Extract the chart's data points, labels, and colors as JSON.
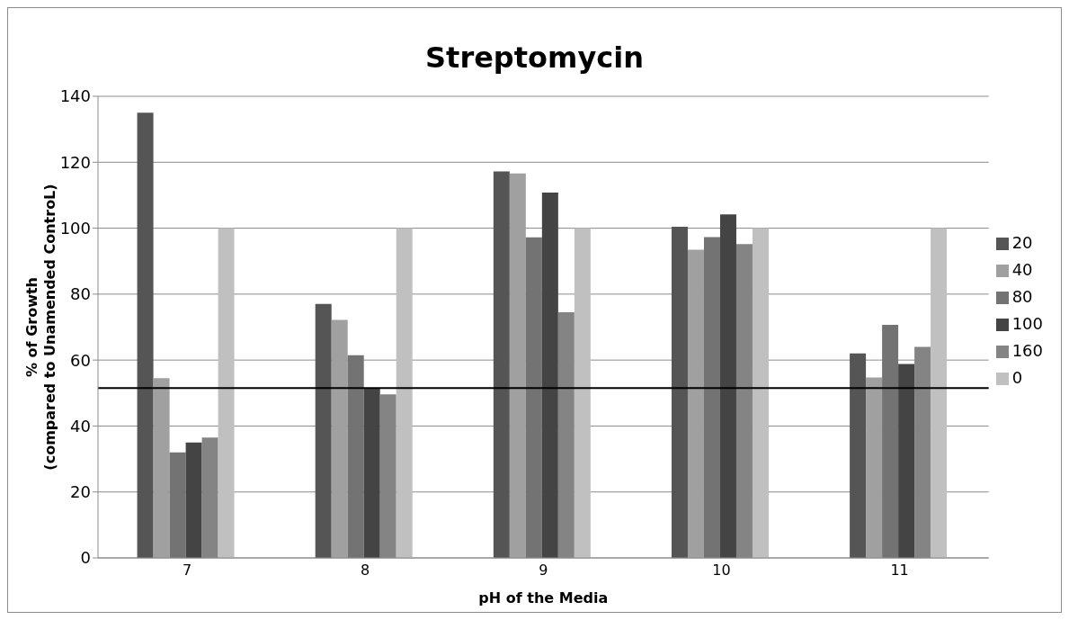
{
  "chart_data": {
    "type": "bar",
    "title": "Streptomycin",
    "xlabel": "pH of the Media",
    "ylabel": "% of Growth\n(compared to Unamended ControL)",
    "categories": [
      "7",
      "8",
      "9",
      "10",
      "11"
    ],
    "series": [
      {
        "name": "20",
        "color": "#555555",
        "values": [
          135,
          77,
          117.2,
          100.4,
          62
        ]
      },
      {
        "name": "40",
        "color": "#a0a0a0",
        "values": [
          54.5,
          72.2,
          116.6,
          93.5,
          54.7
        ]
      },
      {
        "name": "80",
        "color": "#737373",
        "values": [
          32,
          61.5,
          97.2,
          97.3,
          70.7
        ]
      },
      {
        "name": "100",
        "color": "#444444",
        "values": [
          35,
          51.5,
          110.8,
          104.2,
          58.8
        ]
      },
      {
        "name": "160",
        "color": "#848484",
        "values": [
          36.5,
          49.6,
          74.5,
          95.2,
          64
        ]
      },
      {
        "name": "0",
        "color": "#c0c0c0",
        "values": [
          100,
          100,
          100,
          100,
          100
        ]
      }
    ],
    "ylim": [
      0,
      140
    ],
    "yticks": [
      0,
      20,
      40,
      60,
      80,
      100,
      120,
      140
    ],
    "grid": "y",
    "legend": "right",
    "ref_lines": [
      {
        "axis": "y",
        "value": 51.5,
        "color": "#000000"
      }
    ]
  }
}
